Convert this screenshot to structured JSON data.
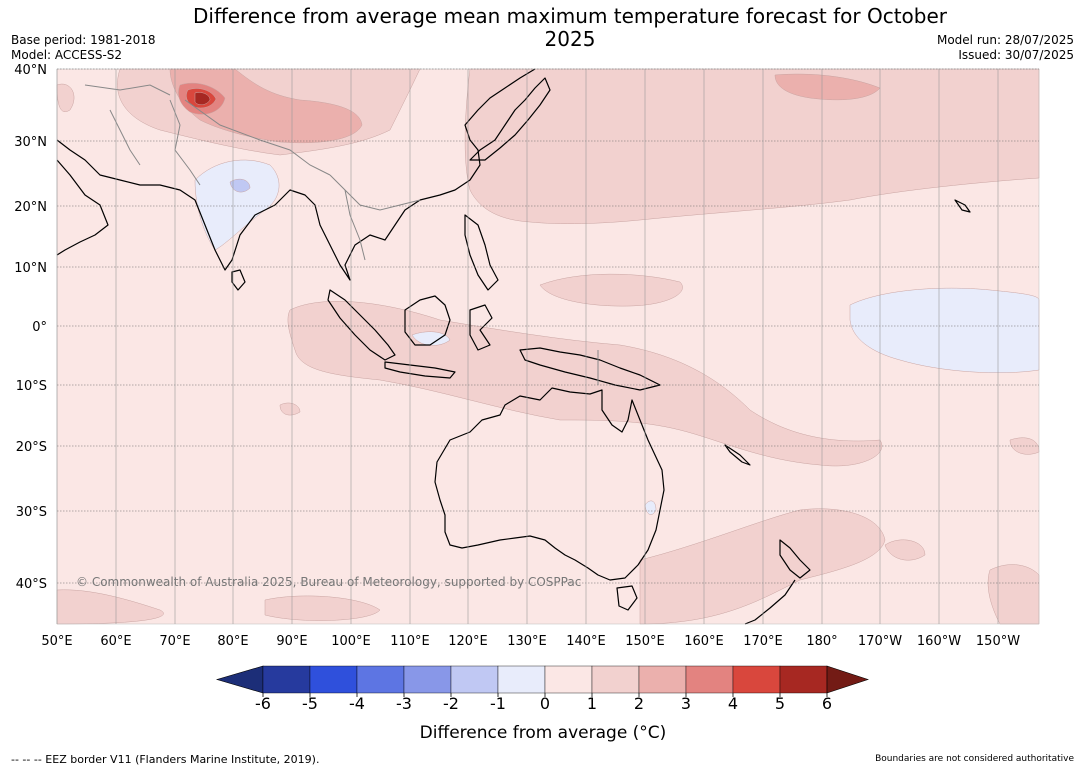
{
  "title": "Difference from average mean maximum temperature forecast for October 2025",
  "meta_left": {
    "base_period": "Base period: 1981-2018",
    "model": "Model: ACCESS-S2"
  },
  "meta_right": {
    "model_run": "Model run: 28/07/2025",
    "issued": "Issued: 30/07/2025"
  },
  "copyright": "© Commonwealth of Australia 2025, Bureau of Meteorology, supported by COSPPac",
  "footer_left": "-- -- -- EEZ border V11 (Flanders Marine Institute, 2019).",
  "footer_right": "Boundaries are not considered authoritative",
  "map": {
    "lat_labels": [
      "40°N",
      "30°N",
      "20°N",
      "10°N",
      "0°",
      "10°S",
      "20°S",
      "30°S",
      "40°S"
    ],
    "lon_labels": [
      "50°E",
      "60°E",
      "70°E",
      "80°E",
      "90°E",
      "100°E",
      "110°E",
      "120°E",
      "130°E",
      "140°E",
      "150°E",
      "160°E",
      "170°E",
      "180°",
      "170°W",
      "160°W",
      "150°W"
    ],
    "background_color": "#fbe7e5"
  },
  "colorbar": {
    "title": "Difference from average (°C)",
    "labels": [
      "-6",
      "-5",
      "-4",
      "-3",
      "-2",
      "-1",
      "0",
      "1",
      "2",
      "3",
      "4",
      "5",
      "6"
    ],
    "colors": [
      "#263a9e",
      "#2f50dc",
      "#5d75e3",
      "#8897e8",
      "#c0c8f3",
      "#e8ecfb",
      "#fbe7e5",
      "#f2d1cf",
      "#ebb0ad",
      "#e38380",
      "#d9473d",
      "#a72822"
    ],
    "extend_low_color": "#1c2e78",
    "extend_high_color": "#731b15"
  }
}
